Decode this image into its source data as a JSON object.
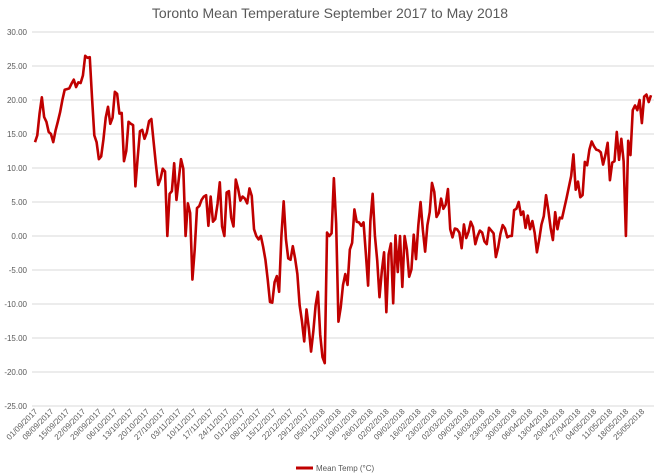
{
  "chart_data": {
    "type": "line",
    "title": "Toronto Mean Temperature September 2017 to May 2018",
    "xlabel": "",
    "ylabel": "",
    "ylim": [
      -25,
      30
    ],
    "y_ticks": [
      "-25.00",
      "-20.00",
      "-15.00",
      "-10.00",
      "-5.00",
      "0.00",
      "5.00",
      "10.00",
      "15.00",
      "20.00",
      "25.00",
      "30.00"
    ],
    "y_tick_values": [
      -25,
      -20,
      -15,
      -10,
      -5,
      0,
      5,
      10,
      15,
      20,
      25,
      30
    ],
    "x_tick_labels": [
      "01/09/2017",
      "08/09/2017",
      "15/09/2017",
      "22/09/2017",
      "29/09/2017",
      "06/10/2017",
      "13/10/2017",
      "20/10/2017",
      "27/10/2017",
      "03/11/2017",
      "10/11/2017",
      "17/11/2017",
      "24/11/2017",
      "01/12/2017",
      "08/12/2017",
      "15/12/2017",
      "22/12/2017",
      "29/12/2017",
      "05/01/2018",
      "12/01/2018",
      "19/01/2018",
      "26/01/2018",
      "02/02/2018",
      "09/02/2018",
      "16/02/2018",
      "23/02/2018",
      "02/03/2018",
      "09/03/2018",
      "16/03/2018",
      "23/03/2018",
      "30/03/2018",
      "06/04/2018",
      "13/04/2018",
      "20/04/2018",
      "27/04/2018",
      "04/05/2018",
      "11/05/2018",
      "18/05/2018",
      "25/05/2018"
    ],
    "x_tick_interval_days": 7,
    "x_start": "01/09/2017",
    "x_end": "31/05/2018",
    "grid": true,
    "legend_position": "bottom",
    "series": [
      {
        "name": "Mean Temp (°C)",
        "color": "#c00000",
        "values": [
          13.8,
          14.8,
          18.0,
          20.4,
          17.5,
          16.8,
          15.3,
          15.0,
          13.8,
          15.5,
          16.8,
          18.2,
          20.0,
          21.5,
          21.6,
          21.7,
          22.4,
          23.0,
          21.9,
          22.6,
          22.5,
          23.6,
          26.5,
          26.2,
          26.3,
          20.3,
          14.8,
          13.8,
          11.3,
          11.7,
          14.2,
          17.4,
          19.0,
          16.5,
          17.4,
          21.2,
          20.9,
          18.0,
          18.1,
          11.0,
          12.5,
          16.8,
          16.5,
          16.3,
          7.3,
          11.5,
          15.4,
          15.6,
          14.3,
          15.2,
          16.9,
          17.2,
          13.8,
          10.5,
          7.5,
          8.4,
          9.9,
          9.5,
          0.0,
          6.2,
          6.6,
          10.7,
          5.3,
          8.3,
          11.3,
          9.9,
          0.0,
          4.8,
          3.4,
          -6.4,
          -2.0,
          4.1,
          4.4,
          5.3,
          5.8,
          6.0,
          1.5,
          5.8,
          2.1,
          2.5,
          4.7,
          7.9,
          1.4,
          0.0,
          6.4,
          6.6,
          2.7,
          1.4,
          8.3,
          7.0,
          5.2,
          5.8,
          5.5,
          4.8,
          7.0,
          5.9,
          1.0,
          0.0,
          -0.5,
          0.0,
          -1.6,
          -3.5,
          -6.4,
          -9.7,
          -9.8,
          -6.8,
          -5.9,
          -8.2,
          0.0,
          5.1,
          -0.5,
          -3.3,
          -3.5,
          -1.5,
          -3.3,
          -5.6,
          -10.2,
          -12.5,
          -15.5,
          -10.8,
          -13.5,
          -17.0,
          -14.0,
          -10.2,
          -8.2,
          -14.5,
          -17.8,
          -18.7,
          0.5,
          0.0,
          0.4,
          8.5,
          1.8,
          -12.6,
          -10.5,
          -7.2,
          -5.6,
          -7.2,
          -2.0,
          -1.0,
          3.9,
          2.1,
          2.0,
          1.5,
          2.0,
          -2.5,
          -7.3,
          2.2,
          6.2,
          0.0,
          -3.6,
          -9.0,
          -5.2,
          -2.4,
          -11.2,
          -2.7,
          -1.1,
          -9.9,
          0.1,
          -5.3,
          0.0,
          -7.5,
          0.0,
          -2.0,
          -6.0,
          -4.9,
          0.2,
          -3.4,
          1.5,
          5.0,
          0.9,
          -2.3,
          1.6,
          3.5,
          7.8,
          6.5,
          2.8,
          3.4,
          5.5,
          4.0,
          4.6,
          6.9,
          1.0,
          -0.2,
          1.1,
          1.0,
          0.5,
          -1.8,
          1.7,
          -0.3,
          0.6,
          2.1,
          1.3,
          -1.2,
          0.0,
          0.8,
          0.5,
          -0.8,
          -1.2,
          1.2,
          0.8,
          0.4,
          -3.1,
          -1.7,
          0.3,
          1.6,
          1.1,
          -0.2,
          0.0,
          0.0,
          3.8,
          4.0,
          5.0,
          3.1,
          3.6,
          1.2,
          3.0,
          1.0,
          2.2,
          0.5,
          -2.4,
          -0.5,
          1.7,
          2.9,
          6.0,
          3.8,
          1.2,
          -0.6,
          3.5,
          1.0,
          2.7,
          2.6,
          4.1,
          5.6,
          7.2,
          8.8,
          12.0,
          6.8,
          8.0,
          5.7,
          6.0,
          10.9,
          10.4,
          12.7,
          13.9,
          13.2,
          12.7,
          12.6,
          12.3,
          10.5,
          11.9,
          13.7,
          8.2,
          10.8,
          11.0,
          15.3,
          11.2,
          14.3,
          11.0,
          0.0,
          14.0,
          11.9,
          18.5,
          19.2,
          18.5,
          20.0,
          16.6,
          20.5,
          20.8,
          19.7,
          20.7
        ]
      }
    ]
  }
}
